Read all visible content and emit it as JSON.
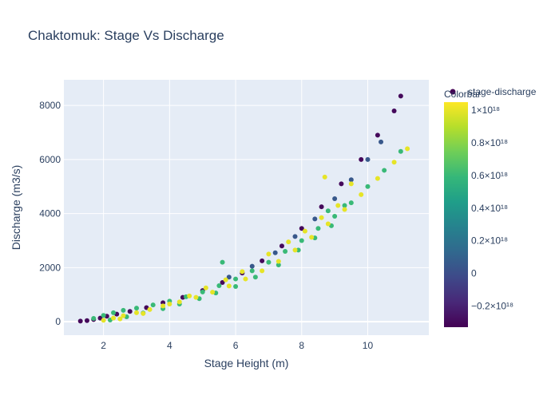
{
  "chart_data": {
    "type": "scatter",
    "title": "Chaktomuk: Stage Vs Discharge",
    "xlabel": "Stage Height (m)",
    "ylabel": "Discharge (m3/s)",
    "xlim": [
      0.8,
      11.85
    ],
    "ylim": [
      -500,
      8950
    ],
    "xticks": [
      2,
      4,
      6,
      8,
      10
    ],
    "xtick_labels": [
      "2",
      "4",
      "6",
      "8",
      "10"
    ],
    "yticks": [
      0,
      2000,
      4000,
      6000,
      8000
    ],
    "ytick_labels": [
      "0",
      "2000",
      "4000",
      "6000",
      "8000"
    ],
    "grid": true,
    "legend": {
      "entries": [
        "stage-discharge"
      ],
      "placement": "top-right"
    },
    "colorbar": {
      "title": "Colorbar",
      "range": [
        -3.3e+17,
        1.05e+18
      ],
      "ticks": [
        1e+18,
        8e+17,
        6e+17,
        4e+17,
        2e+17,
        0,
        -2e+17
      ],
      "tick_labels": [
        "1×10¹⁸",
        "0.8×10¹⁸",
        "0.6×10¹⁸",
        "0.4×10¹⁸",
        "0.2×10¹⁸",
        "0",
        "−0.2×10¹⁸"
      ],
      "colorscale": [
        "#440154",
        "#482878",
        "#3e4989",
        "#31688e",
        "#26828e",
        "#1f9e89",
        "#35b779",
        "#6ece58",
        "#b5de2b",
        "#fde725"
      ]
    },
    "series": [
      {
        "name": "stage-discharge",
        "groups": [
          {
            "color_value": -3e+17,
            "x": [
              1.3,
              1.5,
              1.7,
              1.9,
              2.1,
              2.4,
              2.8,
              3.3,
              3.8,
              4.4,
              5.0,
              5.6,
              6.2,
              6.8,
              7.4,
              8.0,
              8.6,
              9.2,
              9.8,
              10.3,
              10.8,
              11.0
            ],
            "y": [
              20,
              40,
              80,
              130,
              200,
              280,
              380,
              520,
              700,
              900,
              1150,
              1450,
              1800,
              2250,
              2800,
              3450,
              4250,
              5100,
              6000,
              6900,
              7800,
              8350
            ]
          },
          {
            "color_value": 5e+16,
            "x": [
              5.8,
              6.5,
              7.2,
              7.8,
              8.4,
              9.0,
              9.5,
              10.0,
              10.4
            ],
            "y": [
              1650,
              2050,
              2550,
              3150,
              3800,
              4550,
              5250,
              6000,
              6650
            ]
          },
          {
            "color_value": 6e+17,
            "x": [
              1.7,
              2.0,
              2.3,
              2.6,
              3.0,
              3.5,
              4.0,
              4.5,
              5.0,
              5.5,
              6.0,
              6.5,
              7.0,
              7.5,
              8.0,
              8.5,
              9.0,
              9.5,
              10.0,
              10.5,
              11.0,
              2.2,
              2.7,
              3.2,
              3.8,
              4.3,
              4.9,
              5.4,
              6.0,
              6.6,
              7.3,
              7.9,
              8.4,
              8.9,
              5.6,
              8.8,
              9.3
            ],
            "y": [
              120,
              230,
              330,
              420,
              500,
              620,
              760,
              920,
              1100,
              1330,
              1580,
              1880,
              2200,
              2600,
              3000,
              3450,
              3900,
              4400,
              5000,
              5600,
              6300,
              60,
              180,
              320,
              480,
              650,
              850,
              1060,
              1300,
              1650,
              2100,
              2650,
              3100,
              3550,
              2200,
              4100,
              4300
            ]
          },
          {
            "color_value": 1e+18,
            "x": [
              2.0,
              2.3,
              2.6,
              3.0,
              3.4,
              3.8,
              4.3,
              4.8,
              5.3,
              5.8,
              6.3,
              6.8,
              7.3,
              7.8,
              8.3,
              8.8,
              9.3,
              9.8,
              10.3,
              10.8,
              11.2,
              2.5,
              3.2,
              4.0,
              4.6,
              5.1,
              5.7,
              6.2,
              7.0,
              7.6,
              8.1,
              8.6,
              9.1,
              8.7,
              9.5
            ],
            "y": [
              50,
              130,
              220,
              330,
              450,
              580,
              730,
              900,
              1090,
              1320,
              1580,
              1880,
              2230,
              2650,
              3120,
              3620,
              4150,
              4700,
              5300,
              5900,
              6400,
              100,
              300,
              650,
              950,
              1250,
              1550,
              1850,
              2500,
              2950,
              3350,
              3850,
              4300,
              5350,
              5100
            ]
          }
        ]
      }
    ]
  }
}
